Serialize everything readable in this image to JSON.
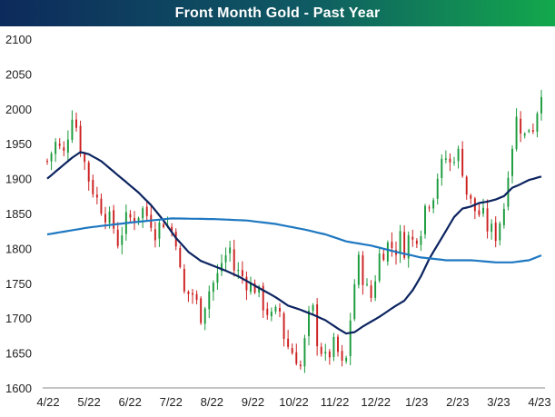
{
  "chart_data": {
    "type": "candlestick",
    "title": "Front Month Gold - Past Year",
    "xlabel": "",
    "ylabel": "",
    "ylim": [
      1600,
      2100
    ],
    "yticks": [
      1600,
      1650,
      1700,
      1750,
      1800,
      1850,
      1900,
      1950,
      2000,
      2050,
      2100
    ],
    "xticks": [
      "4/22",
      "5/22",
      "6/22",
      "7/22",
      "8/22",
      "9/22",
      "10/22",
      "11/22",
      "12/22",
      "1/23",
      "2/23",
      "3/23",
      "4/23"
    ],
    "grid": false,
    "legend": "none",
    "colors": {
      "up": "#1a9a3c",
      "down": "#cc1f1f",
      "ma50": "#0c2460",
      "ma200": "#1f78c1"
    },
    "price_path": [
      [
        0,
        1925
      ],
      [
        2,
        1950
      ],
      [
        4,
        1935
      ],
      [
        6,
        1995
      ],
      [
        7,
        1975
      ],
      [
        8,
        1945
      ],
      [
        10,
        1900
      ],
      [
        12,
        1870
      ],
      [
        14,
        1850
      ],
      [
        16,
        1830
      ],
      [
        17,
        1810
      ],
      [
        19,
        1840
      ],
      [
        21,
        1845
      ],
      [
        23,
        1855
      ],
      [
        25,
        1840
      ],
      [
        26,
        1825
      ],
      [
        28,
        1840
      ],
      [
        30,
        1825
      ],
      [
        31,
        1815
      ],
      [
        32,
        1765
      ],
      [
        33,
        1735
      ],
      [
        35,
        1735
      ],
      [
        36,
        1720
      ],
      [
        37,
        1705
      ],
      [
        39,
        1740
      ],
      [
        41,
        1760
      ],
      [
        42,
        1780
      ],
      [
        44,
        1800
      ],
      [
        45,
        1770
      ],
      [
        47,
        1760
      ],
      [
        49,
        1745
      ],
      [
        50,
        1745
      ],
      [
        52,
        1720
      ],
      [
        54,
        1700
      ],
      [
        56,
        1710
      ],
      [
        57,
        1675
      ],
      [
        58,
        1660
      ],
      [
        60,
        1645
      ],
      [
        61,
        1630
      ],
      [
        62,
        1665
      ],
      [
        63,
        1700
      ],
      [
        64,
        1710
      ],
      [
        65,
        1670
      ],
      [
        66,
        1655
      ],
      [
        67,
        1640
      ],
      [
        68,
        1650
      ],
      [
        69,
        1660
      ],
      [
        70,
        1650
      ],
      [
        71,
        1630
      ],
      [
        72,
        1640
      ],
      [
        73,
        1700
      ],
      [
        74,
        1750
      ],
      [
        75,
        1780
      ],
      [
        76,
        1760
      ],
      [
        77,
        1740
      ],
      [
        78,
        1730
      ],
      [
        79,
        1760
      ],
      [
        80,
        1790
      ],
      [
        82,
        1805
      ],
      [
        84,
        1800
      ],
      [
        85,
        1815
      ],
      [
        86,
        1800
      ],
      [
        87,
        1815
      ],
      [
        88,
        1810
      ],
      [
        90,
        1830
      ],
      [
        91,
        1860
      ],
      [
        93,
        1880
      ],
      [
        94,
        1905
      ],
      [
        96,
        1930
      ],
      [
        97,
        1920
      ],
      [
        98,
        1935
      ],
      [
        99,
        1935
      ],
      [
        100,
        1915
      ],
      [
        101,
        1880
      ],
      [
        102,
        1865
      ],
      [
        103,
        1855
      ],
      [
        105,
        1845
      ],
      [
        106,
        1830
      ],
      [
        107,
        1825
      ],
      [
        108,
        1820
      ],
      [
        109,
        1840
      ],
      [
        110,
        1860
      ],
      [
        111,
        1915
      ],
      [
        112,
        1950
      ],
      [
        113,
        1985
      ],
      [
        114,
        1975
      ],
      [
        115,
        1960
      ],
      [
        116,
        1975
      ],
      [
        117,
        1975
      ],
      [
        118,
        2000
      ],
      [
        119,
        2030
      ]
    ],
    "series": [
      {
        "name": "",
        "values": [
          [
            0,
            1900
          ],
          [
            3,
            1915
          ],
          [
            6,
            1930
          ],
          [
            8,
            1938
          ],
          [
            10,
            1935
          ],
          [
            13,
            1925
          ],
          [
            16,
            1910
          ],
          [
            19,
            1895
          ],
          [
            22,
            1880
          ],
          [
            25,
            1862
          ],
          [
            28,
            1840
          ],
          [
            31,
            1815
          ],
          [
            34,
            1795
          ],
          [
            37,
            1782
          ],
          [
            40,
            1775
          ],
          [
            43,
            1768
          ],
          [
            46,
            1760
          ],
          [
            49,
            1750
          ],
          [
            52,
            1740
          ],
          [
            55,
            1730
          ],
          [
            58,
            1718
          ],
          [
            61,
            1712
          ],
          [
            64,
            1705
          ],
          [
            67,
            1697
          ],
          [
            70,
            1685
          ],
          [
            72,
            1678
          ],
          [
            74,
            1680
          ],
          [
            76,
            1688
          ],
          [
            78,
            1695
          ],
          [
            80,
            1702
          ],
          [
            82,
            1710
          ],
          [
            84,
            1718
          ],
          [
            86,
            1725
          ],
          [
            88,
            1740
          ],
          [
            90,
            1760
          ],
          [
            92,
            1785
          ],
          [
            94,
            1805
          ],
          [
            96,
            1825
          ],
          [
            98,
            1845
          ],
          [
            100,
            1857
          ],
          [
            102,
            1860
          ],
          [
            104,
            1865
          ],
          [
            106,
            1867
          ],
          [
            108,
            1870
          ],
          [
            110,
            1875
          ],
          [
            112,
            1887
          ],
          [
            114,
            1892
          ],
          [
            116,
            1898
          ],
          [
            119,
            1903
          ]
        ]
      },
      {
        "name": "",
        "values": [
          [
            0,
            1820
          ],
          [
            10,
            1830
          ],
          [
            20,
            1837
          ],
          [
            30,
            1843
          ],
          [
            40,
            1842
          ],
          [
            48,
            1840
          ],
          [
            55,
            1835
          ],
          [
            62,
            1827
          ],
          [
            67,
            1820
          ],
          [
            72,
            1810
          ],
          [
            78,
            1804
          ],
          [
            84,
            1795
          ],
          [
            90,
            1787
          ],
          [
            96,
            1783
          ],
          [
            102,
            1783
          ],
          [
            108,
            1780
          ],
          [
            112,
            1780
          ],
          [
            116,
            1783
          ],
          [
            119,
            1790
          ]
        ]
      }
    ]
  }
}
